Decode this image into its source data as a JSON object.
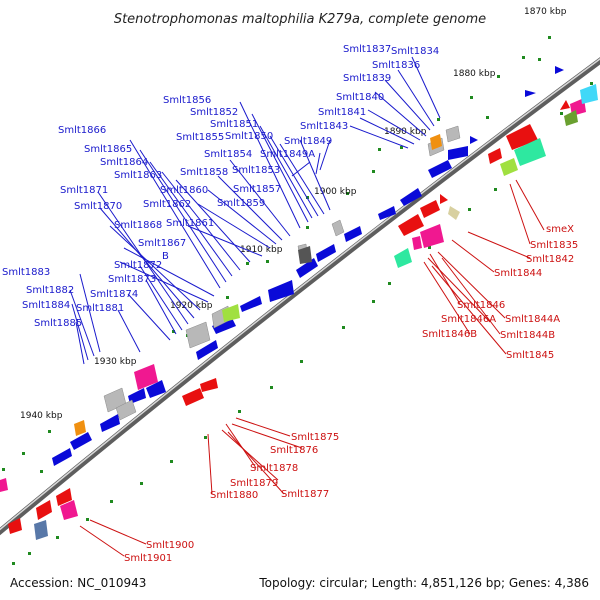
{
  "title": "Stenotrophomonas maltophilia K279a, complete genome",
  "footer": {
    "accession": "Accession: NC_010943",
    "summary": "Topology: circular; Length: 4,851,126 bp; Genes: 4,386"
  },
  "kbp_labels": [
    "1870 kbp",
    "1880 kbp",
    "1890 kbp",
    "1900 kbp",
    "1910 kbp",
    "1920 kbp",
    "1930 kbp",
    "1940 kbp"
  ],
  "blue_labels": [
    "Smlt1834",
    "Smlt1837",
    "Smlt1836",
    "Smlt1839",
    "Smlt1840",
    "Smlt1841",
    "Smlt1843",
    "Smlt1849",
    "Smlt1849A",
    "Smlt1850",
    "Smlt1851",
    "Smlt1852",
    "Smlt1853",
    "Smlt1854",
    "Smlt1855",
    "Smlt1856",
    "Smlt1857",
    "Smlt1858",
    "Smlt1859",
    "Smlt1860",
    "Smlt1861",
    "Smlt1862",
    "Smlt1863",
    "Smlt1864",
    "Smlt1865",
    "Smlt1866",
    "Smlt1867",
    "B",
    "Smlt1868",
    "Smlt1870",
    "Smlt1871",
    "Smlt1872",
    "Smlt1873",
    "Smlt1874",
    "Smlt1881",
    "Smlt1882",
    "Smlt1883",
    "Smlt1884",
    "Smlt1885"
  ],
  "red_labels": [
    "smeX",
    "Smlt1835",
    "Smlt1842",
    "Smlt1844",
    "Smlt1846",
    "Smlt1844A",
    "Smlt1846A",
    "Smlt1846B",
    "Smlt1844B",
    "Smlt1845",
    "Smlt1875",
    "Smlt1876",
    "Smlt1878",
    "Smlt1879",
    "Smlt1877",
    "Smlt1880",
    "Smlt1900",
    "Smlt1901"
  ],
  "colors": {
    "forward_strand": "#0a0ad8",
    "reverse_strand": "#e81010",
    "backbone": "#6e6e6e",
    "tick_dots": "#1f8a1f",
    "pseudogene": "#b8b8b8",
    "rna_magenta": "#f01890",
    "rna_green": "#2ee8a0"
  }
}
